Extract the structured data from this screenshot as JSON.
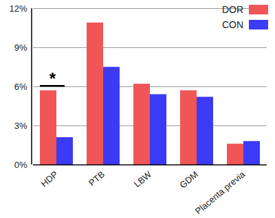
{
  "chart_data": {
    "type": "bar",
    "categories": [
      "HDP",
      "PTB",
      "LBW",
      "GDM",
      "Placenta previa"
    ],
    "series": [
      {
        "name": "DOR",
        "color": "#f05656",
        "values": [
          5.7,
          10.9,
          6.2,
          5.7,
          1.6
        ]
      },
      {
        "name": "CON",
        "color": "#3b3bf5",
        "values": [
          2.1,
          7.5,
          5.4,
          5.2,
          1.8
        ]
      }
    ],
    "ylim": [
      0,
      12
    ],
    "yticks": [
      {
        "value": 0,
        "label": "0%"
      },
      {
        "value": 3,
        "label": "3%"
      },
      {
        "value": 6,
        "label": "6%"
      },
      {
        "value": 9,
        "label": "9%"
      },
      {
        "value": 12,
        "label": "12%"
      }
    ],
    "grid": true,
    "legend": "top-right",
    "annotations": [
      {
        "text": "*",
        "category": "HDP"
      }
    ]
  }
}
